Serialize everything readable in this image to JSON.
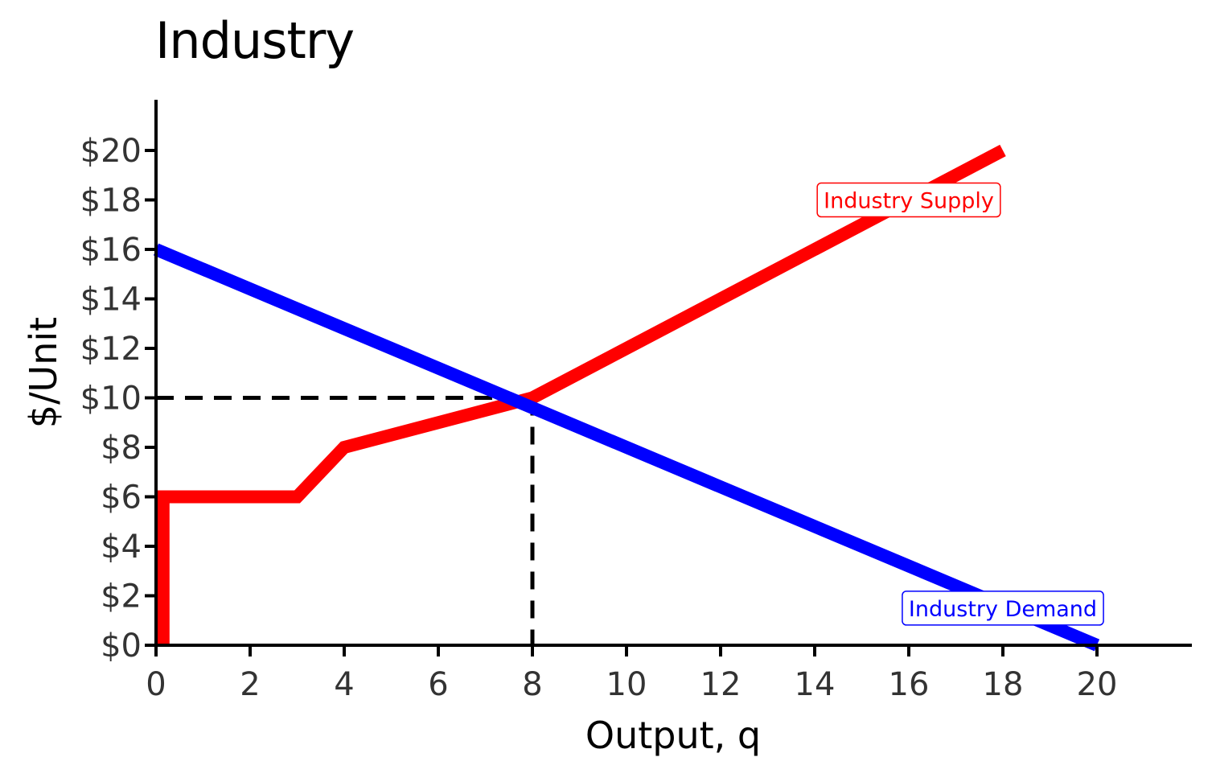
{
  "chart_data": {
    "type": "line",
    "title": "Industry",
    "xlabel": "Output, q",
    "ylabel": "$/Unit",
    "xlim": [
      0,
      22
    ],
    "ylim": [
      0,
      22
    ],
    "x_ticks": [
      0,
      2,
      4,
      6,
      8,
      10,
      12,
      14,
      16,
      18,
      20
    ],
    "x_tick_labels": [
      "0",
      "2",
      "4",
      "6",
      "8",
      "10",
      "12",
      "14",
      "16",
      "18",
      "20"
    ],
    "y_ticks": [
      0,
      2,
      4,
      6,
      8,
      10,
      12,
      14,
      16,
      18,
      20
    ],
    "y_tick_labels": [
      "$0",
      "$2",
      "$4",
      "$6",
      "$8",
      "$10",
      "$12",
      "$14",
      "$16",
      "$18",
      "$20"
    ],
    "grid": false,
    "series": [
      {
        "name": "Industry Supply",
        "color": "#ff0000",
        "points": [
          [
            0.15,
            0
          ],
          [
            0.15,
            6
          ],
          [
            3,
            6
          ],
          [
            4,
            8
          ],
          [
            8,
            10
          ],
          [
            18,
            20
          ]
        ],
        "label_at": [
          16,
          18
        ]
      },
      {
        "name": "Industry Demand",
        "color": "#0000ff",
        "points": [
          [
            0,
            16
          ],
          [
            20,
            0
          ]
        ],
        "label_at": [
          18,
          1.5
        ]
      }
    ],
    "reference_lines": {
      "color": "#000000",
      "style": "dashed",
      "x": 8,
      "y": 10
    }
  }
}
